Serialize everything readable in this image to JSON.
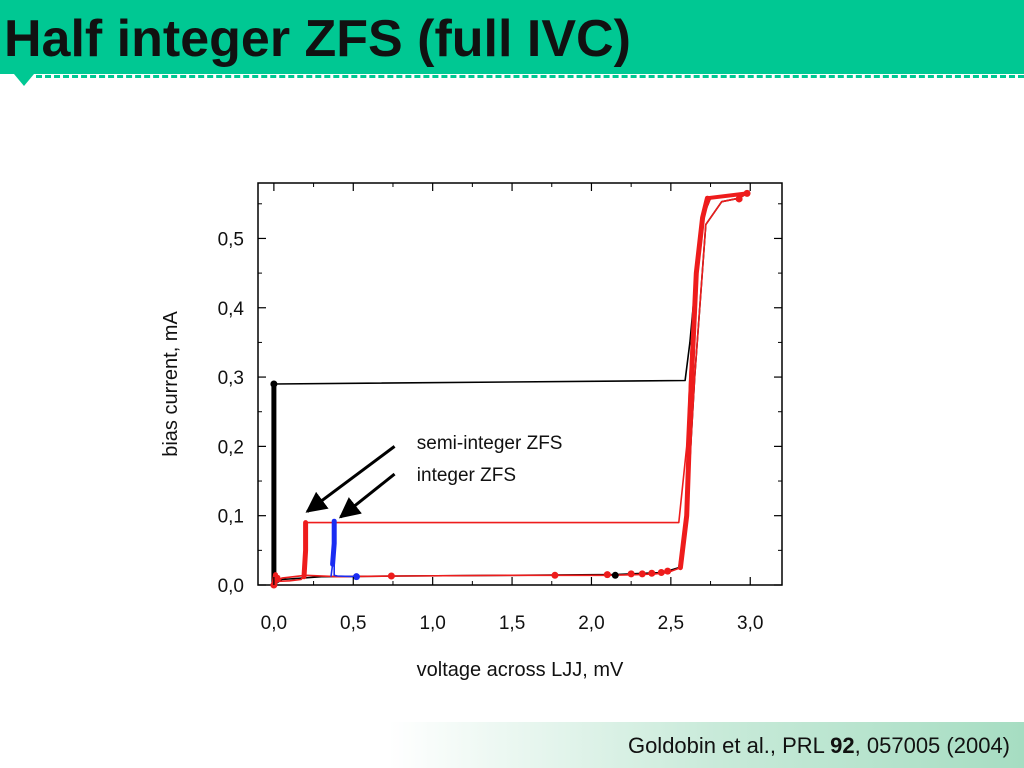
{
  "slide": {
    "title": "Half integer ZFS (full IVC)",
    "citation": {
      "authors": "Goldobin et al.,",
      "journal": "PRL",
      "volume": "92",
      "rest": ", 057005  (2004)"
    }
  },
  "colors": {
    "accent": "#00c893",
    "red": "#ee1c1c",
    "blue": "#1a2cf2",
    "black": "#000000"
  },
  "chart_data": {
    "type": "line",
    "xlabel": "voltage across LJJ, mV",
    "ylabel": "bias current, mA",
    "xlim": [
      -0.1,
      3.2
    ],
    "ylim": [
      0,
      0.58
    ],
    "x_ticks": [
      0,
      0.5,
      1.0,
      1.5,
      2.0,
      2.5,
      3.0
    ],
    "x_tick_labels": [
      "0,0",
      "0,5",
      "1,0",
      "1,5",
      "2,0",
      "2,5",
      "3,0"
    ],
    "y_ticks": [
      0,
      0.1,
      0.2,
      0.3,
      0.4,
      0.5
    ],
    "y_tick_labels": [
      "0,0",
      "0,1",
      "0,2",
      "0,3",
      "0,4",
      "0,5"
    ],
    "grid": false,
    "series": [
      {
        "color": "#000000",
        "x": [
          0.0,
          0.0,
          2.59,
          2.62,
          2.66,
          2.7,
          2.75,
          2.9,
          2.98,
          2.93,
          2.82,
          2.72,
          2.65,
          2.6,
          2.55,
          2.45,
          2.15,
          1.5,
          0.8,
          0.3,
          0.05,
          0.0
        ],
        "y": [
          0.0,
          0.29,
          0.295,
          0.35,
          0.45,
          0.53,
          0.558,
          0.562,
          0.565,
          0.558,
          0.553,
          0.52,
          0.3,
          0.1,
          0.025,
          0.018,
          0.015,
          0.014,
          0.013,
          0.012,
          0.008,
          0.0
        ]
      },
      {
        "color": "#ee1c1c",
        "x": [
          0.0,
          0.01,
          0.1,
          0.17,
          0.19,
          0.2,
          0.2,
          2.55,
          2.6,
          2.63,
          2.66,
          2.7,
          2.75,
          2.9,
          2.98,
          2.93,
          2.82,
          2.72,
          2.65,
          2.6,
          2.56,
          2.48,
          2.4,
          2.3,
          2.1,
          1.5,
          0.8,
          0.4,
          0.2,
          0.05,
          0.0
        ],
        "y": [
          0.0,
          0.005,
          0.006,
          0.008,
          0.012,
          0.05,
          0.09,
          0.09,
          0.2,
          0.35,
          0.45,
          0.53,
          0.558,
          0.562,
          0.565,
          0.558,
          0.553,
          0.52,
          0.3,
          0.1,
          0.025,
          0.018,
          0.016,
          0.015,
          0.014,
          0.014,
          0.013,
          0.012,
          0.014,
          0.01,
          0.0
        ]
      },
      {
        "color": "#1a2cf2",
        "x": [
          0.36,
          0.37,
          0.38,
          0.38,
          0.38,
          0.4,
          0.52
        ],
        "y": [
          0.012,
          0.03,
          0.06,
          0.092,
          0.014,
          0.013,
          0.012
        ]
      }
    ],
    "markers": [
      {
        "color": "#ee1c1c",
        "x": [
          0.0,
          0.02,
          0.74,
          1.77,
          2.1,
          2.25,
          2.32,
          2.38,
          2.44,
          2.48,
          2.93,
          2.98
        ],
        "y": [
          0.0,
          0.01,
          0.013,
          0.014,
          0.015,
          0.016,
          0.016,
          0.017,
          0.018,
          0.02,
          0.557,
          0.565
        ]
      },
      {
        "color": "#1a2cf2",
        "x": [
          0.52
        ],
        "y": [
          0.012
        ]
      },
      {
        "color": "#000000",
        "x": [
          0.0,
          2.15
        ],
        "y": [
          0.29,
          0.014
        ]
      }
    ],
    "annotations": [
      {
        "text": "semi-integer ZFS",
        "x": 0.9,
        "y": 0.196,
        "arrow_from": [
          0.76,
          0.2
        ],
        "arrow_to": [
          0.21,
          0.106
        ]
      },
      {
        "text": "integer ZFS",
        "x": 0.9,
        "y": 0.15,
        "arrow_from": [
          0.76,
          0.16
        ],
        "arrow_to": [
          0.42,
          0.098
        ]
      }
    ]
  }
}
